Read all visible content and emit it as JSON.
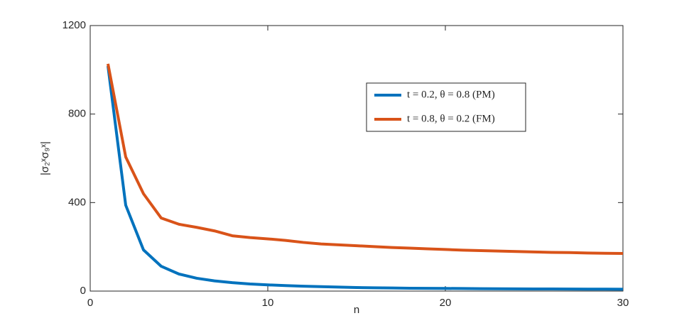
{
  "chart_data": {
    "type": "line",
    "xlabel": "n",
    "ylabel": "|σ₂ˣσ₉ˣ|",
    "x": [
      1,
      2,
      3,
      4,
      5,
      6,
      7,
      8,
      9,
      10,
      11,
      12,
      13,
      14,
      15,
      16,
      17,
      18,
      19,
      20,
      21,
      22,
      23,
      24,
      25,
      26,
      27,
      28,
      29,
      30
    ],
    "series": [
      {
        "name": "t = 0.2, θ = 0.8 (PM)",
        "color": "#0072bd",
        "values": [
          1017,
          388,
          186,
          112,
          77,
          58,
          46,
          38,
          32,
          28,
          25,
          22,
          20,
          18,
          16,
          15,
          14,
          13,
          12.5,
          12,
          11.5,
          11,
          10.5,
          10,
          9.8,
          9.5,
          9.2,
          9,
          8.7,
          8.5
        ]
      },
      {
        "name": "t = 0.8, θ = 0.2 (FM)",
        "color": "#d95319",
        "values": [
          1027,
          606,
          440,
          330,
          302,
          288,
          272,
          250,
          242,
          236,
          229,
          220,
          213,
          209,
          205,
          201,
          197,
          194,
          191,
          188,
          185,
          183,
          181,
          179,
          177,
          175,
          174,
          172,
          171,
          170
        ]
      }
    ],
    "xlim": [
      0,
      30
    ],
    "xticks": [
      0,
      10,
      20,
      30
    ],
    "ylim": [
      0,
      1200
    ],
    "yticks": [
      0,
      400,
      800,
      1200
    ]
  }
}
